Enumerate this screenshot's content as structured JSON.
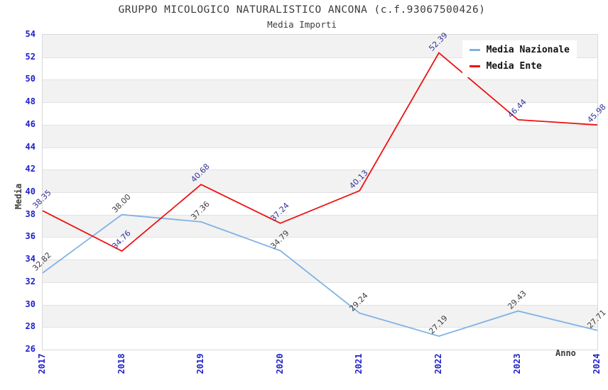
{
  "header": {
    "title": "GRUPPO MICOLOGICO NATURALISTICO ANCONA (c.f.93067500426)",
    "subtitle": "Media Importi"
  },
  "axes": {
    "y_title": "Media",
    "x_title": "Anno"
  },
  "colors": {
    "tick_label": "#2020cc",
    "band": "#f2f2f2",
    "gridline": "#e2e2e2",
    "plot_border": "#d8d8d8",
    "title_text": "#3c3c3c"
  },
  "chart_data": {
    "type": "line",
    "title": "GRUPPO MICOLOGICO NATURALISTICO ANCONA (c.f.93067500426)",
    "subtitle": "Media Importi",
    "xlabel": "Anno",
    "ylabel": "Media",
    "categories": [
      "2017",
      "2018",
      "2019",
      "2020",
      "2021",
      "2022",
      "2023",
      "2024"
    ],
    "series": [
      {
        "name": "Media Nazionale",
        "color": "#7fb2e5",
        "label_color": "#3d3d3d",
        "values": [
          32.82,
          38.0,
          37.36,
          34.79,
          29.24,
          27.19,
          29.43,
          27.71
        ],
        "labels": [
          "32.82",
          "38.00",
          "37.36",
          "34.79",
          "29.24",
          "27.19",
          "29.43",
          "27.71"
        ]
      },
      {
        "name": "Media Ente",
        "color": "#ee1111",
        "label_color": "#333399",
        "values": [
          38.35,
          34.76,
          40.68,
          37.24,
          40.13,
          52.39,
          46.44,
          45.98
        ],
        "labels": [
          "38.35",
          "34.76",
          "40.68",
          "37.24",
          "40.13",
          "52.39",
          "46.44",
          "45.98"
        ]
      }
    ],
    "ylim": [
      26,
      54
    ],
    "ytick_step": 2,
    "grid": true,
    "banded_background": true,
    "legend_position": "top-right"
  }
}
